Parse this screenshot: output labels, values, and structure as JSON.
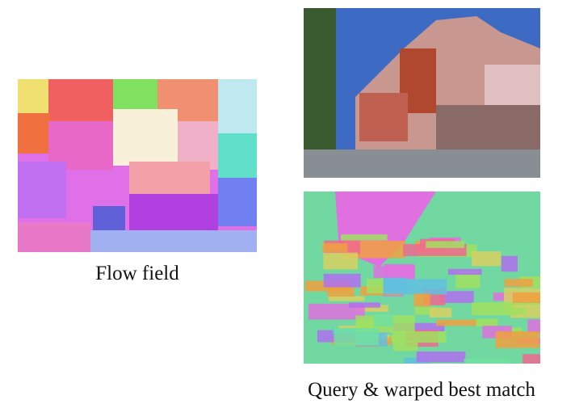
{
  "figure": {
    "left_caption": "Flow field",
    "right_caption": "Query & warped best match"
  }
}
